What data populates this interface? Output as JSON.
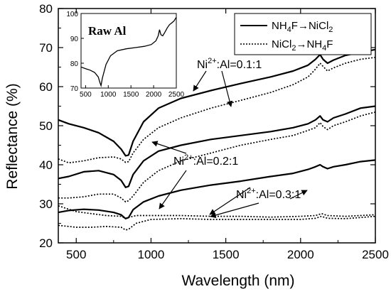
{
  "chart_data": [
    {
      "type": "line",
      "xlabel": "Wavelength (nm)",
      "ylabel": "Reflectance (%)",
      "xlim": [
        380,
        2500
      ],
      "ylim": [
        20,
        80
      ],
      "xticks": [
        500,
        1000,
        1500,
        2000,
        2500
      ],
      "yticks": [
        20,
        30,
        40,
        50,
        60,
        70,
        80
      ],
      "legend": {
        "placement": "top-right",
        "entries": [
          {
            "label_main": "NH",
            "label_sub1": "4",
            "label_mid": "F→NiCl",
            "label_sub2": "2",
            "style": "solid"
          },
          {
            "label_main": "NiCl",
            "label_sub1": "2",
            "label_mid": "→NH",
            "label_sub2": "4",
            "label_end": "F",
            "style": "dotted"
          }
        ]
      },
      "annotations": [
        {
          "base": "Ni",
          "sup": "2+",
          "rest": ":Al=0.1:1"
        },
        {
          "base": "Ni",
          "sup": "2+",
          "rest": ":Al=0.2:1"
        },
        {
          "base": "Ni",
          "sup": "2+",
          "rest": ":Al=0.3:1"
        }
      ],
      "series": [
        {
          "group": "0.1:1",
          "style": "solid",
          "x": [
            380,
            450,
            550,
            650,
            750,
            800,
            830,
            850,
            880,
            950,
            1050,
            1200,
            1400,
            1600,
            1800,
            1950,
            2050,
            2100,
            2130,
            2150,
            2180,
            2220,
            2300,
            2400,
            2500
          ],
          "y": [
            51.5,
            50.5,
            49.5,
            48.2,
            46,
            44,
            42.3,
            42.5,
            46,
            51,
            54.5,
            57,
            59,
            60.8,
            62.5,
            64,
            65.5,
            67,
            68.2,
            67,
            66,
            66.8,
            68,
            68.8,
            69.5
          ]
        },
        {
          "group": "0.1:1",
          "style": "dotted",
          "x": [
            380,
            450,
            550,
            650,
            750,
            800,
            830,
            850,
            880,
            950,
            1050,
            1200,
            1400,
            1600,
            1800,
            1950,
            2050,
            2100,
            2130,
            2150,
            2180,
            2220,
            2300,
            2400,
            2500
          ],
          "y": [
            41.5,
            40.5,
            41,
            41.8,
            42,
            41.5,
            40.6,
            40.8,
            43,
            46.5,
            49.5,
            52,
            54.5,
            56.5,
            58.5,
            60.5,
            62.5,
            64.5,
            66,
            65.2,
            64,
            64.8,
            66,
            67,
            67.5
          ]
        },
        {
          "group": "0.2:1",
          "style": "solid",
          "x": [
            380,
            450,
            550,
            650,
            750,
            800,
            830,
            850,
            880,
            950,
            1050,
            1200,
            1400,
            1600,
            1800,
            1950,
            2050,
            2100,
            2130,
            2150,
            2180,
            2220,
            2300,
            2400,
            2500
          ],
          "y": [
            36.5,
            37,
            38.2,
            38.5,
            37.5,
            36,
            34.2,
            34.5,
            37.5,
            41,
            43.5,
            45,
            46.5,
            47.5,
            48.5,
            49.5,
            50.5,
            51.5,
            52.5,
            51.5,
            51,
            52,
            53,
            54.5,
            55
          ]
        },
        {
          "group": "0.2:1",
          "style": "dotted",
          "x": [
            380,
            450,
            550,
            650,
            750,
            800,
            830,
            850,
            880,
            950,
            1050,
            1200,
            1400,
            1600,
            1800,
            1950,
            2050,
            2100,
            2130,
            2150,
            2180,
            2220,
            2300,
            2400,
            2500
          ],
          "y": [
            31.5,
            31.5,
            31.8,
            32.5,
            32.5,
            31.5,
            30.5,
            30.8,
            32,
            35.5,
            38.5,
            41,
            43,
            45,
            46.5,
            47.5,
            48.8,
            49.5,
            50.8,
            49.8,
            49,
            50,
            51,
            52.5,
            53.5
          ]
        },
        {
          "group": "0.3:1",
          "style": "solid",
          "x": [
            380,
            450,
            550,
            650,
            750,
            800,
            830,
            850,
            880,
            950,
            1050,
            1200,
            1400,
            1600,
            1800,
            1950,
            2050,
            2100,
            2130,
            2150,
            2180,
            2220,
            2300,
            2400,
            2500
          ],
          "y": [
            27.8,
            28.3,
            28.6,
            28.4,
            27.8,
            27.2,
            26.2,
            26.5,
            28.5,
            30.5,
            32,
            33.5,
            34.8,
            35.8,
            37,
            37.8,
            38.8,
            39.5,
            40,
            39.5,
            39,
            39.5,
            40,
            40.8,
            41.2
          ]
        },
        {
          "group": "0.3:1",
          "style": "dotted",
          "x": [
            380,
            500,
            600,
            700,
            800,
            830,
            850,
            900,
            1000,
            1200,
            1400,
            1600,
            1800,
            2000,
            2100,
            2140,
            2180,
            2300,
            2400,
            2500
          ],
          "y": [
            29.5,
            28,
            27.5,
            27,
            26.8,
            26.3,
            26.5,
            27,
            27,
            27,
            26.8,
            26.8,
            26.6,
            26.8,
            27,
            27.5,
            27,
            26.8,
            27,
            27.2
          ]
        },
        {
          "group": "0.3:1",
          "style": "dotted",
          "x": [
            380,
            500,
            600,
            700,
            800,
            830,
            850,
            900,
            1000,
            1200,
            1400,
            1600,
            1800,
            2000,
            2100,
            2140,
            2180,
            2300,
            2400,
            2500
          ],
          "y": [
            24.5,
            24,
            24,
            24.2,
            24,
            23.3,
            23.5,
            25,
            26,
            26.2,
            26,
            26,
            26,
            26,
            26.3,
            26.8,
            26.3,
            26.2,
            26.5,
            26.8
          ]
        }
      ]
    },
    {
      "type": "line",
      "title": "Raw Al",
      "xlim": [
        400,
        2500
      ],
      "ylim": [
        70,
        100
      ],
      "xticks": [
        500,
        1000,
        1500,
        2000,
        2500
      ],
      "yticks": [
        70,
        80,
        90,
        100
      ],
      "series": [
        {
          "style": "solid",
          "x": [
            400,
            500,
            600,
            700,
            780,
            820,
            840,
            870,
            950,
            1050,
            1200,
            1400,
            1600,
            1800,
            1950,
            2050,
            2100,
            2130,
            2160,
            2200,
            2250,
            2300,
            2350,
            2400,
            2450,
            2500
          ],
          "y": [
            78.5,
            77.8,
            77.2,
            76.3,
            74.5,
            72,
            71,
            74,
            79.5,
            83,
            85,
            85.8,
            86.3,
            86.8,
            87.5,
            89,
            91,
            93.5,
            91.5,
            91,
            92.5,
            94.2,
            95.5,
            96.2,
            97,
            98.5
          ]
        }
      ]
    }
  ]
}
